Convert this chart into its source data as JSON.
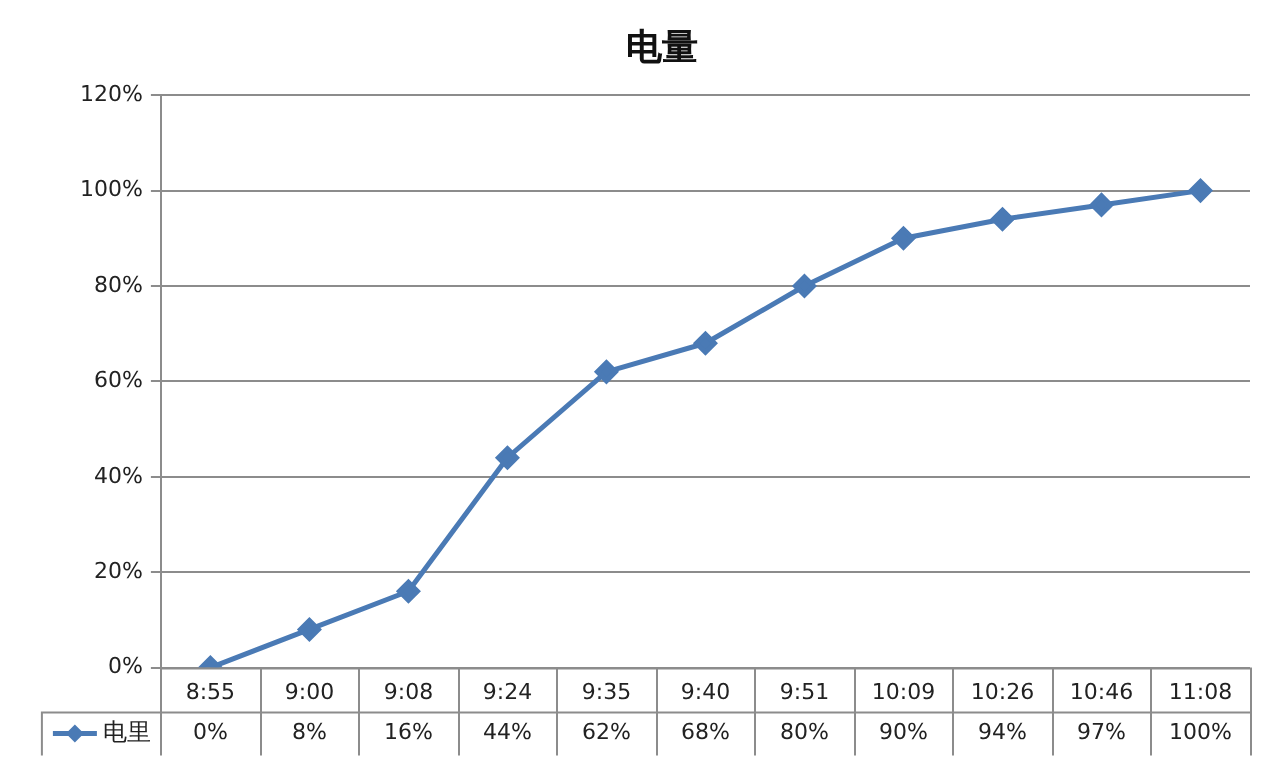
{
  "chart_data": {
    "type": "line",
    "title": "电量",
    "categories": [
      "8:55",
      "9:00",
      "9:08",
      "9:24",
      "9:35",
      "9:40",
      "9:51",
      "10:09",
      "10:26",
      "10:46",
      "11:08"
    ],
    "series": [
      {
        "name": "电里",
        "color": "#4a7ab5",
        "values": [
          0,
          8,
          16,
          44,
          62,
          68,
          80,
          90,
          94,
          97,
          100
        ],
        "value_labels": [
          "0%",
          "8%",
          "16%",
          "44%",
          "62%",
          "68%",
          "80%",
          "90%",
          "94%",
          "97%",
          "100%"
        ]
      }
    ],
    "ylim": [
      0,
      120
    ],
    "yticks": [
      {
        "value": 0,
        "label": "0%"
      },
      {
        "value": 20,
        "label": "20%"
      },
      {
        "value": 40,
        "label": "40%"
      },
      {
        "value": 60,
        "label": "60%"
      },
      {
        "value": 80,
        "label": "80%"
      },
      {
        "value": 100,
        "label": "100%"
      },
      {
        "value": 120,
        "label": "120%"
      }
    ],
    "grid": "y",
    "legend": "bottom left",
    "marker": "diamond",
    "line_style": "solid"
  }
}
